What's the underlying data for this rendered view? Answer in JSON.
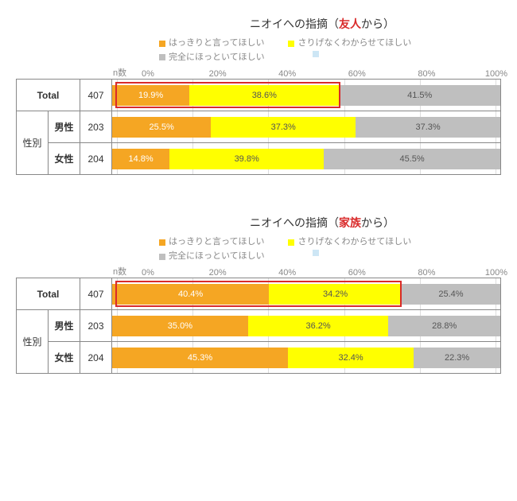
{
  "colors": {
    "orange": "#f5a623",
    "yellow": "#ffff00",
    "grey": "#bfbfbf",
    "highlight": "#d92b2b",
    "text_white": "#ffffff",
    "text_dark": "#555555",
    "text_grey": "#888888",
    "border": "#888888",
    "gridline": "#dddddd"
  },
  "axis": {
    "ticks": [
      0,
      20,
      40,
      60,
      80,
      100
    ],
    "n_header": "n数"
  },
  "legend": {
    "items": [
      {
        "label": "はっきりと言ってほしい",
        "color": "#f5a623"
      },
      {
        "label": "さりげなくわからせてほしい",
        "color": "#ffff00"
      },
      {
        "label": "完全にほっといてほしい",
        "color": "#bfbfbf"
      }
    ]
  },
  "charts": [
    {
      "title_prefix": "ニオイへの指摘（",
      "title_highlight": "友人",
      "title_suffix": "から）",
      "highlight_color": "#d92b2b",
      "category_label": "性別",
      "rows": [
        {
          "label": "Total",
          "n": 407,
          "is_total": true,
          "highlight_span": [
            0,
            58.5
          ],
          "segments": [
            {
              "value": 19.9,
              "text": "19.9%",
              "color": "#f5a623",
              "text_color": "#ffffff"
            },
            {
              "value": 38.6,
              "text": "38.6%",
              "color": "#ffff00",
              "text_color": "#555555"
            },
            {
              "value": 41.5,
              "text": "41.5%",
              "color": "#bfbfbf",
              "text_color": "#555555"
            }
          ]
        },
        {
          "label": "男性",
          "n": 203,
          "segments": [
            {
              "value": 25.5,
              "text": "25.5%",
              "color": "#f5a623",
              "text_color": "#ffffff"
            },
            {
              "value": 37.3,
              "text": "37.3%",
              "color": "#ffff00",
              "text_color": "#555555"
            },
            {
              "value": 37.3,
              "text": "37.3%",
              "color": "#bfbfbf",
              "text_color": "#555555"
            }
          ]
        },
        {
          "label": "女性",
          "n": 204,
          "segments": [
            {
              "value": 14.8,
              "text": "14.8%",
              "color": "#f5a623",
              "text_color": "#ffffff"
            },
            {
              "value": 39.8,
              "text": "39.8%",
              "color": "#ffff00",
              "text_color": "#555555"
            },
            {
              "value": 45.5,
              "text": "45.5%",
              "color": "#bfbfbf",
              "text_color": "#555555"
            }
          ]
        }
      ]
    },
    {
      "title_prefix": "ニオイへの指摘（",
      "title_highlight": "家族",
      "title_suffix": "から）",
      "highlight_color": "#d92b2b",
      "category_label": "性別",
      "rows": [
        {
          "label": "Total",
          "n": 407,
          "is_total": true,
          "highlight_span": [
            0,
            74.6
          ],
          "segments": [
            {
              "value": 40.4,
              "text": "40.4%",
              "color": "#f5a623",
              "text_color": "#ffffff"
            },
            {
              "value": 34.2,
              "text": "34.2%",
              "color": "#ffff00",
              "text_color": "#555555"
            },
            {
              "value": 25.4,
              "text": "25.4%",
              "color": "#bfbfbf",
              "text_color": "#555555"
            }
          ]
        },
        {
          "label": "男性",
          "n": 203,
          "segments": [
            {
              "value": 35.0,
              "text": "35.0%",
              "color": "#f5a623",
              "text_color": "#ffffff"
            },
            {
              "value": 36.2,
              "text": "36.2%",
              "color": "#ffff00",
              "text_color": "#555555"
            },
            {
              "value": 28.8,
              "text": "28.8%",
              "color": "#bfbfbf",
              "text_color": "#555555"
            }
          ]
        },
        {
          "label": "女性",
          "n": 204,
          "segments": [
            {
              "value": 45.3,
              "text": "45.3%",
              "color": "#f5a623",
              "text_color": "#ffffff"
            },
            {
              "value": 32.4,
              "text": "32.4%",
              "color": "#ffff00",
              "text_color": "#555555"
            },
            {
              "value": 22.3,
              "text": "22.3%",
              "color": "#bfbfbf",
              "text_color": "#555555"
            }
          ]
        }
      ]
    }
  ]
}
